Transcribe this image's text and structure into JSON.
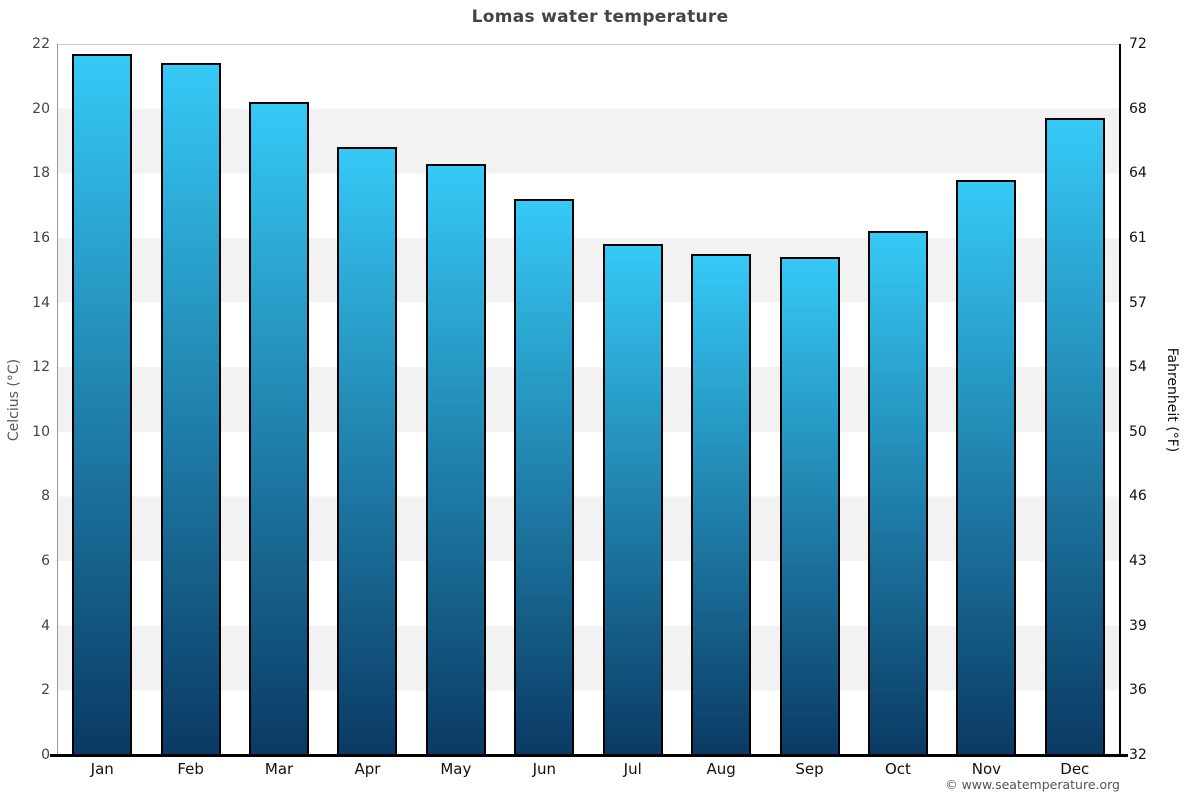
{
  "page": {
    "footer": "© www.seatemperature.org"
  },
  "chart_data": {
    "type": "bar",
    "title": "Lomas water temperature",
    "categories": [
      "Jan",
      "Feb",
      "Mar",
      "Apr",
      "May",
      "Jun",
      "Jul",
      "Aug",
      "Sep",
      "Oct",
      "Nov",
      "Dec"
    ],
    "values": [
      21.7,
      21.4,
      20.2,
      18.8,
      18.3,
      17.2,
      15.8,
      15.5,
      15.4,
      16.2,
      17.8,
      19.7
    ],
    "xlabel": "",
    "ylabel_left": "Celcius (°C)",
    "ylabel_right": "Fahrenheit (°F)",
    "ylim_celsius": [
      0,
      22
    ],
    "yticks_celsius": [
      22,
      20,
      18,
      16,
      14,
      12,
      10,
      8,
      6,
      4,
      2,
      0
    ],
    "yticks_fahrenheit": [
      72,
      68,
      64,
      61,
      57,
      54,
      50,
      46,
      43,
      39,
      36,
      32
    ],
    "legend": "none",
    "grid": "alternating horizontal gray bands every 2°C",
    "colors": {
      "bar_gradient_top": "#36c9f6",
      "bar_gradient_bottom": "#0a3a63",
      "bar_border": "#000000",
      "band_gray": "#f2f2f2",
      "band_white": "#ffffff",
      "title_text": "#444444",
      "left_tick_text": "#444444",
      "right_tick_text": "#111111",
      "footer_text": "#555555"
    }
  }
}
